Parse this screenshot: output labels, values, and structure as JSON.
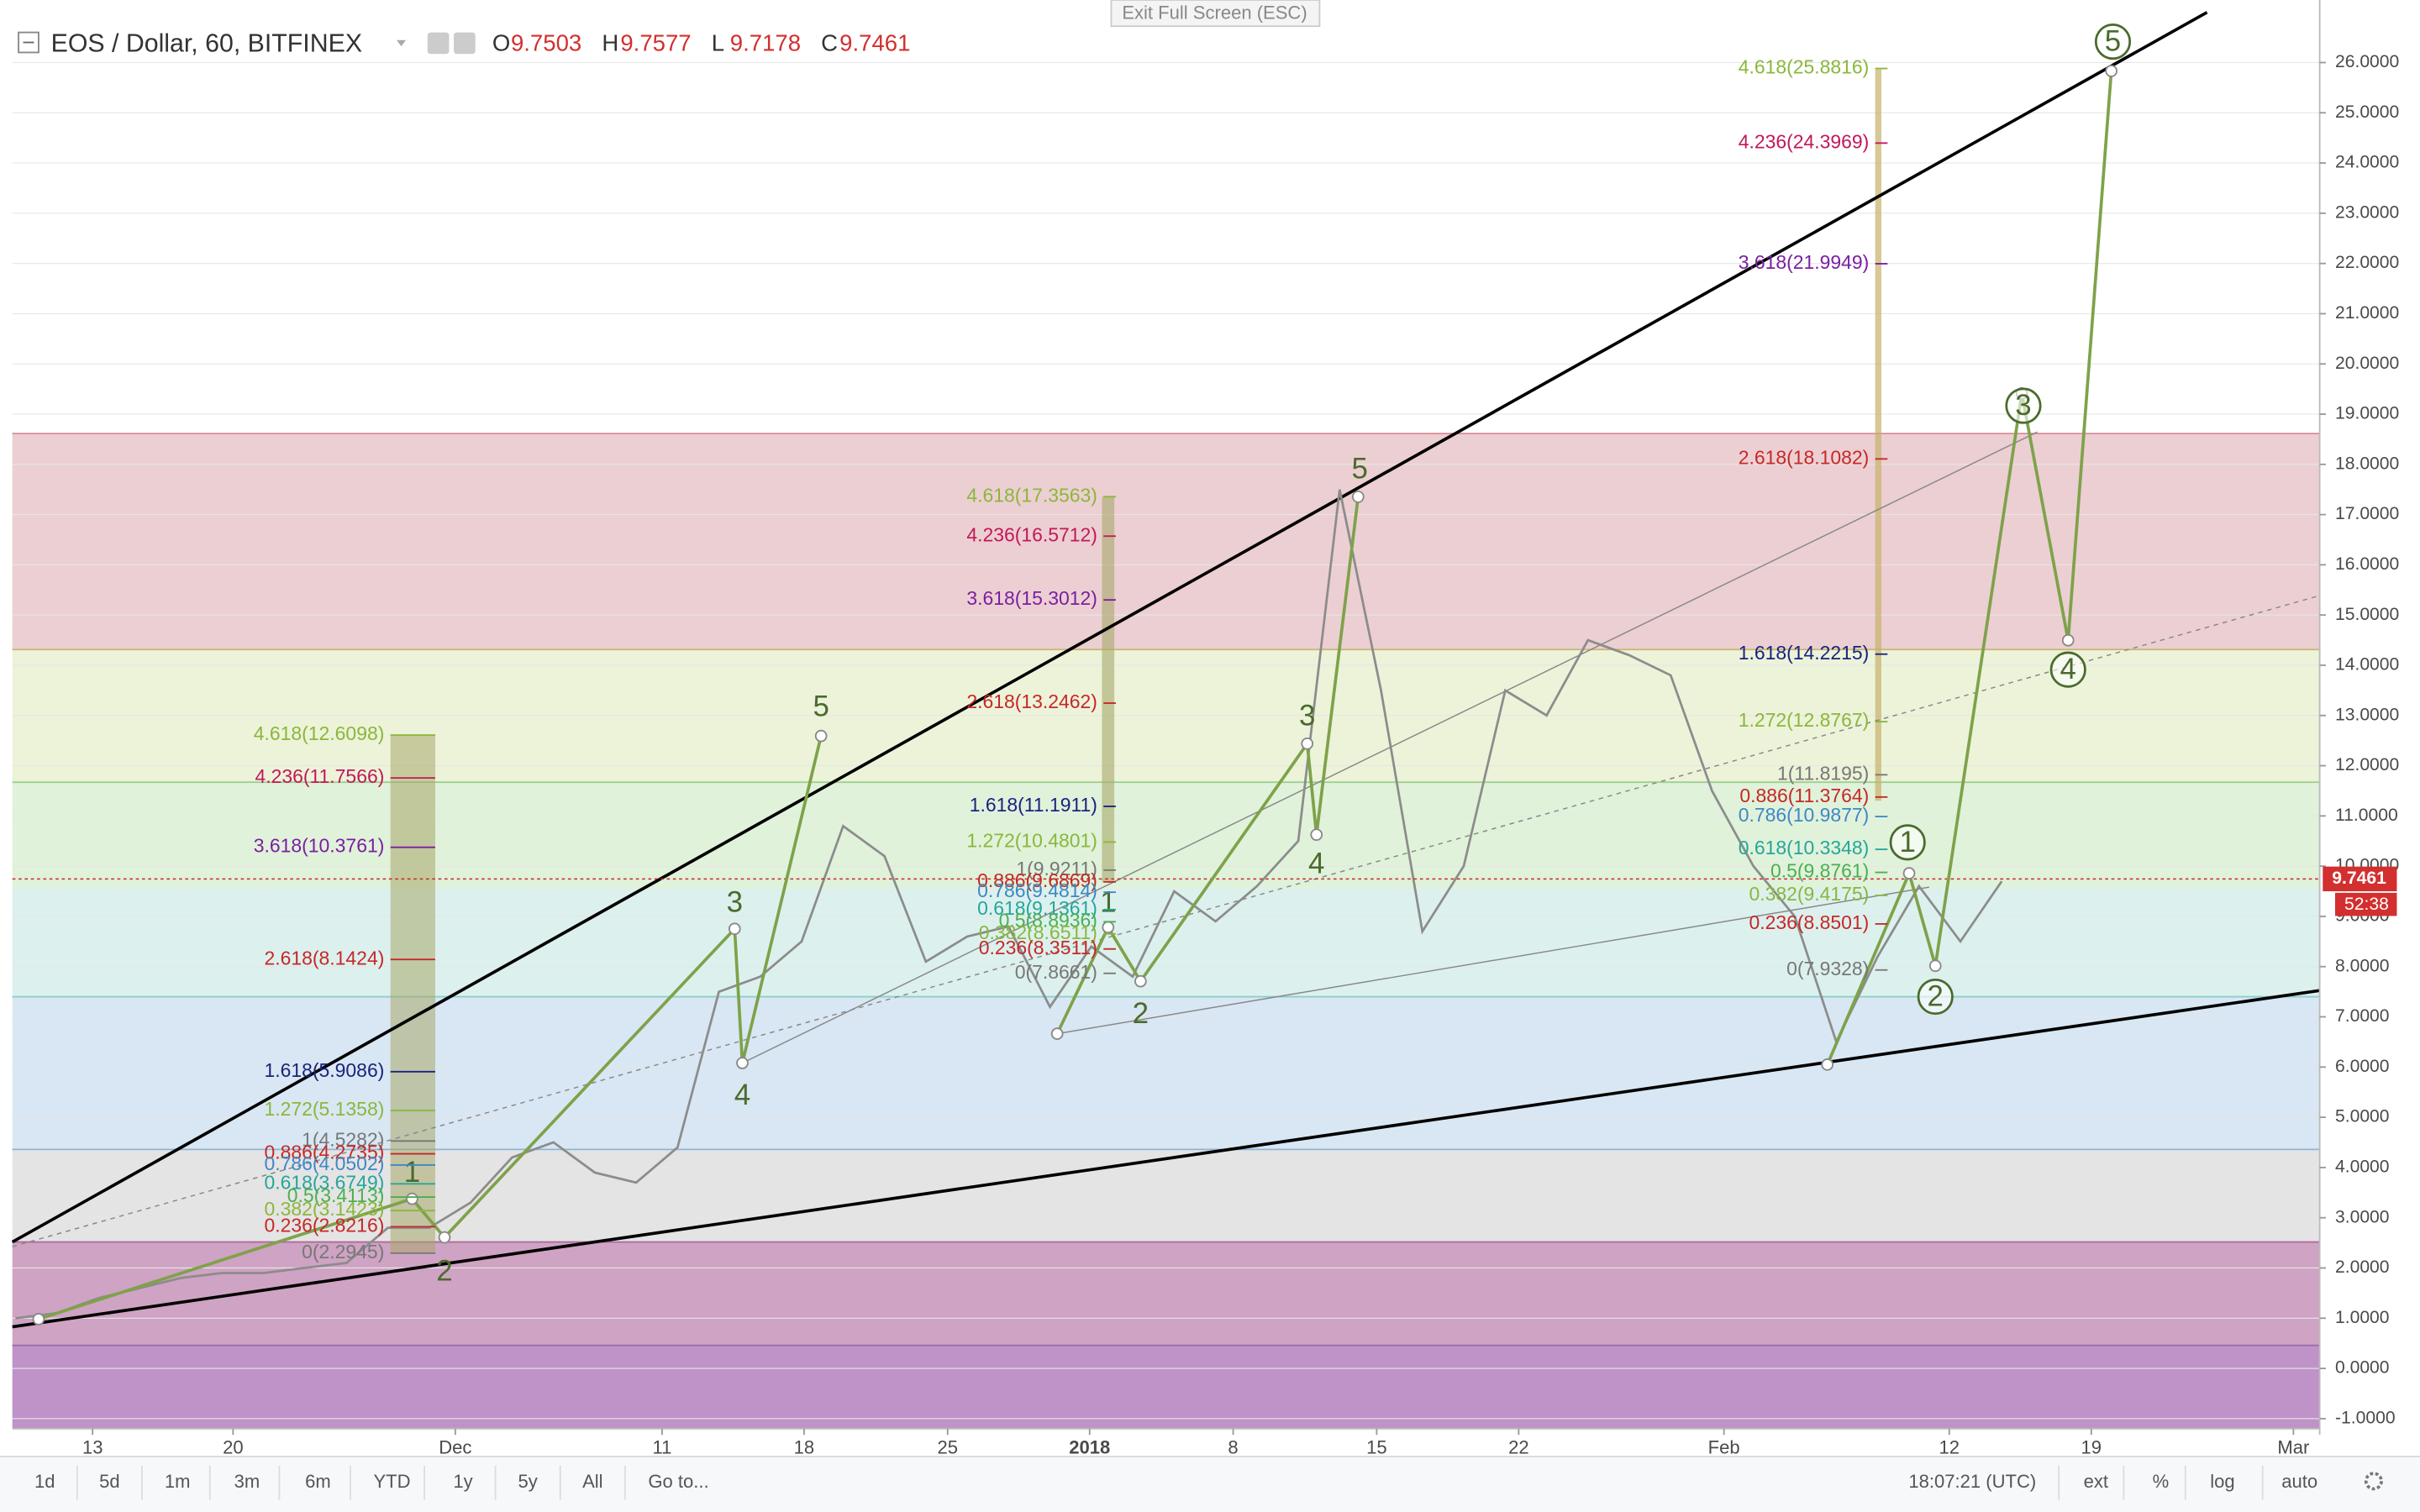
{
  "header": {
    "symbol": "EOS / Dollar, 60, BITFINEX",
    "ohlc": [
      {
        "key": "O",
        "value": 9.7503
      },
      {
        "key": "H",
        "value": 9.7577
      },
      {
        "key": "L",
        "value": 9.7178
      },
      {
        "key": "C",
        "value": 9.7461
      }
    ]
  },
  "exit_button": "Exit Full Screen (ESC)",
  "chart_data": {
    "type": "line",
    "color": "#8c8c8c",
    "values": [
      1.0,
      1.1,
      1.4,
      1.6,
      1.8,
      1.9,
      1.9,
      2.0,
      2.1,
      2.8,
      2.8,
      3.3,
      4.2,
      4.5,
      3.9,
      3.7,
      4.4,
      7.5,
      7.8,
      8.5,
      10.8,
      10.2,
      8.1,
      8.6,
      8.8,
      7.2,
      8.4,
      7.8,
      9.5,
      8.9,
      9.6,
      10.5,
      17.5,
      13.5,
      8.7,
      10.0,
      13.5,
      13.0,
      14.5,
      14.2,
      13.8,
      11.5,
      10.0,
      9.0,
      6.5,
      8.2,
      9.6,
      8.5,
      9.7
    ],
    "ylim": [
      -1.2,
      27.0
    ],
    "yticks": [
      {
        "value": 26,
        "label": "26.0000"
      },
      {
        "value": 25,
        "label": "25.0000"
      },
      {
        "value": 24,
        "label": "24.0000"
      },
      {
        "value": 23,
        "label": "23.0000"
      },
      {
        "value": 22,
        "label": "22.0000"
      },
      {
        "value": 21,
        "label": "21.0000"
      },
      {
        "value": 20,
        "label": "20.0000"
      },
      {
        "value": 19,
        "label": "19.0000"
      },
      {
        "value": 18,
        "label": "18.0000"
      },
      {
        "value": 17,
        "label": "17.0000"
      },
      {
        "value": 16,
        "label": "16.0000"
      },
      {
        "value": 15,
        "label": "15.0000"
      },
      {
        "value": 14,
        "label": "14.0000"
      },
      {
        "value": 13,
        "label": "13.0000"
      },
      {
        "value": 12,
        "label": "12.0000"
      },
      {
        "value": 11,
        "label": "11.0000"
      },
      {
        "value": 10,
        "label": "10.0000"
      },
      {
        "value": 9,
        "label": "9.0000"
      },
      {
        "value": 8,
        "label": "8.0000"
      },
      {
        "value": 7,
        "label": "7.0000"
      },
      {
        "value": 6,
        "label": "6.0000"
      },
      {
        "value": 5,
        "label": "5.0000"
      },
      {
        "value": 4,
        "label": "4.0000"
      },
      {
        "value": 3,
        "label": "3.0000"
      },
      {
        "value": 2,
        "label": "2.0000"
      },
      {
        "value": 1,
        "label": "1.0000"
      },
      {
        "value": 0,
        "label": "0.0000"
      },
      {
        "value": -1,
        "label": "-1.0000"
      }
    ],
    "x_labels": [
      "13",
      "20",
      "Dec",
      "11",
      "18",
      "25",
      "2018",
      "8",
      "15",
      "22",
      "Feb",
      "12",
      "19",
      "Mar"
    ],
    "last_price": 9.7461,
    "countdown": "52:38",
    "fib_groups": [
      [
        {
          "label": "4.618(12.6098)",
          "price": 12.6098,
          "color": "#8bb73b"
        },
        {
          "label": "4.236(11.7566)",
          "price": 11.7566,
          "color": "#c2185b"
        },
        {
          "label": "3.618(10.3761)",
          "price": 10.3761,
          "color": "#7b1fa2"
        },
        {
          "label": "2.618(8.1424)",
          "price": 8.1424,
          "color": "#c62828"
        },
        {
          "label": "1.618(5.9086)",
          "price": 5.9086,
          "color": "#1a237e"
        },
        {
          "label": "1.272(5.1358)",
          "price": 5.1358,
          "color": "#8bb73b"
        },
        {
          "label": "1(4.5282)",
          "price": 4.5282,
          "color": "#777777"
        },
        {
          "label": "0.886(4.2735)",
          "price": 4.2735,
          "color": "#c62828"
        },
        {
          "label": "0.786(4.0502)",
          "price": 4.0502,
          "color": "#3f88c5"
        },
        {
          "label": "0.618(3.6749)",
          "price": 3.6749,
          "color": "#26a69a"
        },
        {
          "label": "0.5(3.4113)",
          "price": 3.4113,
          "color": "#4caf50"
        },
        {
          "label": "0.382(3.1423)",
          "price": 3.1423,
          "color": "#8bb73b"
        },
        {
          "label": "0.236(2.8216)",
          "price": 2.8216,
          "color": "#c62828"
        },
        {
          "label": "0(2.2945)",
          "price": 2.2945,
          "color": "#777777"
        }
      ],
      [
        {
          "label": "4.618(17.3563)",
          "price": 17.3563,
          "color": "#8bb73b"
        },
        {
          "label": "4.236(16.5712)",
          "price": 16.5712,
          "color": "#c2185b"
        },
        {
          "label": "3.618(15.3012)",
          "price": 15.3012,
          "color": "#7b1fa2"
        },
        {
          "label": "2.618(13.2462)",
          "price": 13.2462,
          "color": "#c62828"
        },
        {
          "label": "1.618(11.1911)",
          "price": 11.1911,
          "color": "#1a237e"
        },
        {
          "label": "1.272(10.4801)",
          "price": 10.4801,
          "color": "#8bb73b"
        },
        {
          "label": "1(9.9211)",
          "price": 9.9211,
          "color": "#777777"
        },
        {
          "label": "0.886(9.6869)",
          "price": 9.6869,
          "color": "#c62828"
        },
        {
          "label": "0.786(9.4814)",
          "price": 9.4814,
          "color": "#3f88c5"
        },
        {
          "label": "0.618(9.1361)",
          "price": 9.1361,
          "color": "#26a69a"
        },
        {
          "label": "0.5(8.8936)",
          "price": 8.8936,
          "color": "#4caf50"
        },
        {
          "label": "0.382(8.6511)",
          "price": 8.6511,
          "color": "#8bb73b"
        },
        {
          "label": "0.236(8.3511)",
          "price": 8.3511,
          "color": "#c62828"
        },
        {
          "label": "0(7.8661)",
          "price": 7.8661,
          "color": "#777777"
        }
      ],
      [
        {
          "label": "4.618(25.8816)",
          "price": 25.8816,
          "color": "#8bb73b"
        },
        {
          "label": "4.236(24.3969)",
          "price": 24.3969,
          "color": "#c2185b"
        },
        {
          "label": "3.618(21.9949)",
          "price": 21.9949,
          "color": "#7b1fa2"
        },
        {
          "label": "2.618(18.1082)",
          "price": 18.1082,
          "color": "#c62828"
        },
        {
          "label": "1.618(14.2215)",
          "price": 14.2215,
          "color": "#1a237e"
        },
        {
          "label": "1.272(12.8767)",
          "price": 12.8767,
          "color": "#8bb73b"
        },
        {
          "label": "1(11.8195)",
          "price": 11.8195,
          "color": "#777777"
        },
        {
          "label": "0.886(11.3764)",
          "price": 11.3764,
          "color": "#c62828"
        },
        {
          "label": "0.786(10.9877)",
          "price": 10.9877,
          "color": "#3f88c5"
        },
        {
          "label": "0.618(10.3348)",
          "price": 10.3348,
          "color": "#26a69a"
        },
        {
          "label": "0.5(9.8761)",
          "price": 9.8761,
          "color": "#4caf50"
        },
        {
          "label": "0.382(9.4175)",
          "price": 9.4175,
          "color": "#8bb73b"
        },
        {
          "label": "0.236(8.8501)",
          "price": 8.8501,
          "color": "#c62828"
        },
        {
          "label": "0(7.9328)",
          "price": 7.9328,
          "color": "#777777"
        }
      ]
    ],
    "waves": [
      [
        "1",
        "2",
        "3",
        "4",
        "5"
      ],
      [
        "1",
        "2",
        "3",
        "4",
        "5"
      ],
      [
        "1",
        "2",
        "3",
        "4",
        "5"
      ]
    ]
  },
  "toolbar": {
    "ranges": [
      "1d",
      "5d",
      "1m",
      "3m",
      "6m",
      "YTD",
      "1y",
      "5y",
      "All"
    ],
    "goto": "Go to...",
    "clock": "18:07:21 (UTC)",
    "options": [
      "ext",
      "%",
      "log",
      "auto"
    ]
  }
}
